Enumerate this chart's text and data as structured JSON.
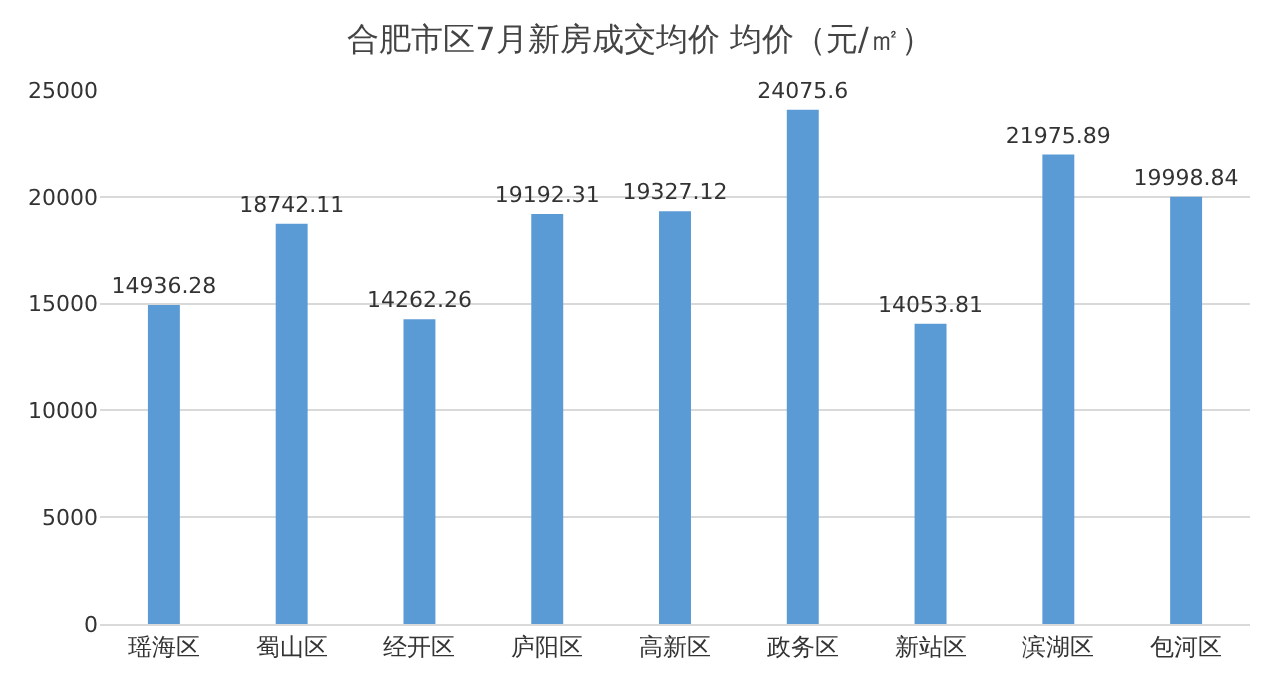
{
  "chart_data": {
    "type": "bar",
    "title": "合肥市区7月新房成交均价 均价（元/㎡）",
    "categories": [
      "瑶海区",
      "蜀山区",
      "经开区",
      "庐阳区",
      "高新区",
      "政务区",
      "新站区",
      "滨湖区",
      "包河区"
    ],
    "values": [
      14936.28,
      18742.11,
      14262.26,
      19192.31,
      19327.12,
      24075.6,
      14053.81,
      21975.89,
      19998.84
    ],
    "color": "#5b9bd5",
    "ylim": [
      0,
      25000
    ],
    "yticks": [
      0,
      5000,
      10000,
      15000,
      20000,
      25000
    ],
    "grid": "y",
    "data_labels": true
  }
}
